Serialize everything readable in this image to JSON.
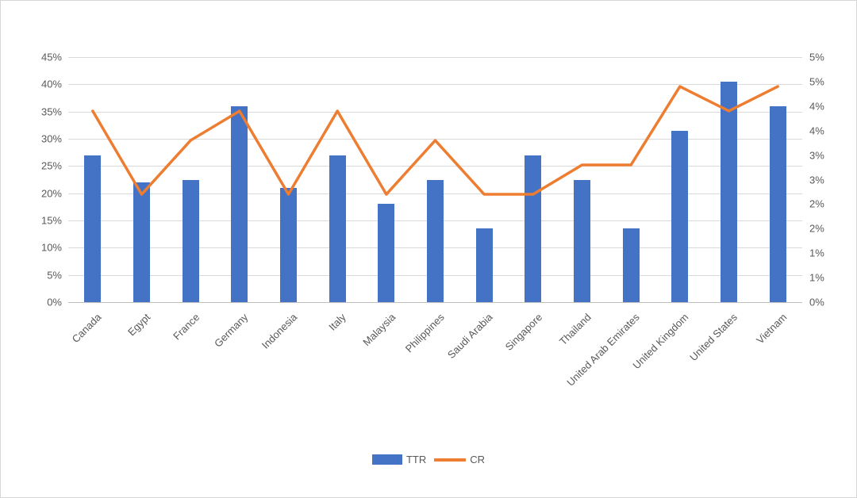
{
  "chart_data": {
    "type": "bar",
    "subtype": "combo-bar-line-dual-axis",
    "title": "",
    "categories": [
      "Canada",
      "Egypt",
      "France",
      "Germany",
      "Indonesia",
      "Italy",
      "Malaysia",
      "Philippines",
      "Saudi Arabia",
      "Singapore",
      "Thailand",
      "United Arab Emirates",
      "United Kingdom",
      "United States",
      "Vietnam"
    ],
    "series": [
      {
        "name": "TTR",
        "type": "bar",
        "axis": "left",
        "color": "#4472C4",
        "values": [
          27,
          22,
          22.5,
          36,
          21,
          27,
          18,
          22.5,
          13.5,
          27,
          22.5,
          13.5,
          31.5,
          40.5,
          36
        ]
      },
      {
        "name": "CR",
        "type": "line",
        "axis": "right",
        "color": "#ED7D31",
        "values": [
          3.9,
          2.2,
          3.3,
          3.9,
          2.2,
          3.9,
          2.2,
          3.3,
          2.2,
          2.2,
          2.8,
          2.8,
          4.4,
          3.9,
          4.4
        ]
      }
    ],
    "left_axis": {
      "min": 0,
      "max": 45,
      "tick_labels_top_to_bottom": [
        "45%",
        "40%",
        "35%",
        "30%",
        "25%",
        "20%",
        "15%",
        "10%",
        "5%",
        "0%"
      ]
    },
    "right_axis": {
      "min": 0,
      "max": 5,
      "tick_labels_top_to_bottom": [
        "5%",
        "5%",
        "4%",
        "4%",
        "3%",
        "3%",
        "2%",
        "2%",
        "1%",
        "1%",
        "0%"
      ]
    },
    "grid": true,
    "legend_position": "bottom",
    "legend": [
      "TTR",
      "CR"
    ],
    "colors": {
      "bar": "#4472C4",
      "line": "#ED7D31",
      "gridline": "#d9d9d9",
      "axis_text": "#595959"
    }
  }
}
